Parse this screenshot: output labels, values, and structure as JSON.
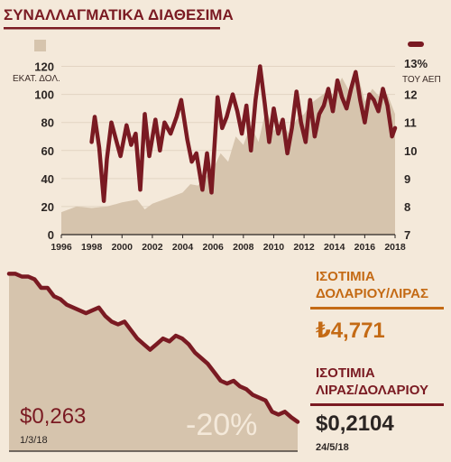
{
  "chart_data": [
    {
      "type": "area+line",
      "title": "ΣΥΝΑΛΛΑΓΜΑΤΙΚΑ ΔΙΑΘΕΣΙΜΑ",
      "left_axis_label": "ΕΚΑΤ. ΔΟΛ.",
      "right_axis_label": "ΤΟΥ ΑΕΠ",
      "right_top_tick": "13%",
      "left_ticks": [
        0,
        20,
        40,
        60,
        80,
        100,
        120
      ],
      "right_ticks": [
        7,
        8,
        9,
        10,
        11,
        12
      ],
      "x_ticks": [
        "1996",
        "1998",
        "2000",
        "2002",
        "2004",
        "2006",
        "2008",
        "2010",
        "2012",
        "2014",
        "2016",
        "2018"
      ],
      "ylim_left": [
        0,
        130
      ],
      "ylim_right": [
        7,
        13.5
      ],
      "xlim": [
        1996,
        2018
      ],
      "area_series": {
        "x": [
          1996,
          1997,
          1998,
          1999,
          2000,
          2001,
          2001.5,
          2002,
          2003,
          2004,
          2004.5,
          2005,
          2006,
          2006.5,
          2007,
          2007.5,
          2008,
          2008.5,
          2009,
          2009.5,
          2010,
          2010.5,
          2011,
          2011.5,
          2012,
          2012.5,
          2013,
          2013.5,
          2014,
          2014.5,
          2015,
          2015.5,
          2016,
          2016.5,
          2017,
          2017.5,
          2018
        ],
        "values": [
          16,
          20,
          19,
          20,
          23,
          25,
          18,
          22,
          26,
          30,
          36,
          35,
          47,
          58,
          52,
          70,
          64,
          78,
          66,
          90,
          74,
          80,
          72,
          82,
          86,
          94,
          98,
          102,
          100,
          112,
          102,
          116,
          95,
          104,
          98,
          100,
          86
        ],
        "color": "#d6c4ad"
      },
      "line_series": {
        "x": [
          1998,
          1998.2,
          1998.5,
          1998.8,
          1999,
          1999.3,
          1999.6,
          1999.9,
          2000.3,
          2000.6,
          2000.9,
          2001.2,
          2001.5,
          2001.8,
          2002.2,
          2002.5,
          2002.8,
          2003.2,
          2003.6,
          2003.9,
          2004.3,
          2004.6,
          2004.9,
          2005.3,
          2005.6,
          2005.9,
          2006.3,
          2006.6,
          2006.9,
          2007.3,
          2007.6,
          2007.9,
          2008.2,
          2008.5,
          2008.8,
          2009.1,
          2009.4,
          2009.7,
          2010,
          2010.3,
          2010.6,
          2010.9,
          2011.2,
          2011.5,
          2011.8,
          2012.1,
          2012.4,
          2012.7,
          2013,
          2013.3,
          2013.6,
          2013.9,
          2014.2,
          2014.5,
          2014.8,
          2015.1,
          2015.4,
          2015.7,
          2016,
          2016.3,
          2016.6,
          2016.9,
          2017.2,
          2017.5,
          2017.8,
          2018
        ],
        "values": [
          10.3,
          11.2,
          10.1,
          8.2,
          9.7,
          11.0,
          10.4,
          9.8,
          10.9,
          10.2,
          10.6,
          8.6,
          11.3,
          9.8,
          11.1,
          10.0,
          11.0,
          10.6,
          11.2,
          11.8,
          10.4,
          9.6,
          9.9,
          8.6,
          9.9,
          8.5,
          11.9,
          10.8,
          11.2,
          12.0,
          11.4,
          10.6,
          11.6,
          10.0,
          11.8,
          13.0,
          11.7,
          10.3,
          11.5,
          10.6,
          11.1,
          9.9,
          10.8,
          12.1,
          11.0,
          10.3,
          11.8,
          10.5,
          11.3,
          11.6,
          12.2,
          11.4,
          12.5,
          11.9,
          11.5,
          12.2,
          12.8,
          11.8,
          11.0,
          12.0,
          11.8,
          11.4,
          12.2,
          11.6,
          10.5,
          10.8
        ],
        "color": "#7a1a22"
      }
    },
    {
      "type": "area",
      "values": [
        0.263,
        0.263,
        0.262,
        0.262,
        0.261,
        0.258,
        0.258,
        0.255,
        0.254,
        0.252,
        0.251,
        0.25,
        0.249,
        0.25,
        0.251,
        0.248,
        0.246,
        0.245,
        0.246,
        0.243,
        0.24,
        0.238,
        0.236,
        0.238,
        0.24,
        0.239,
        0.241,
        0.24,
        0.238,
        0.235,
        0.233,
        0.231,
        0.228,
        0.225,
        0.224,
        0.225,
        0.223,
        0.222,
        0.22,
        0.219,
        0.218,
        0.214,
        0.213,
        0.214,
        0.212,
        0.2104
      ],
      "ylim": [
        0.2,
        0.266
      ],
      "color": "#d6c4ad",
      "line_color": "#7a1a22"
    }
  ],
  "panels": {
    "usd_try": {
      "title_line1": "ΙΣΟΤΙΜΙΑ",
      "title_line2": "ΔΟΛΑΡΙΟΥ/ΛΙΡΑΣ",
      "value": "₺4,771",
      "color": "#c46a14"
    },
    "try_usd": {
      "title_line1": "ΙΣΟΤΙΜΙΑ",
      "title_line2": "ΛΙΡΑΣ/ΔΟΛΑΡΙΟΥ",
      "value": "$0,2104",
      "date": "24/5/18",
      "color": "#7a1a22"
    },
    "start": {
      "value": "$0,263",
      "date": "1/3/18"
    },
    "change": {
      "value": "-20%"
    }
  }
}
